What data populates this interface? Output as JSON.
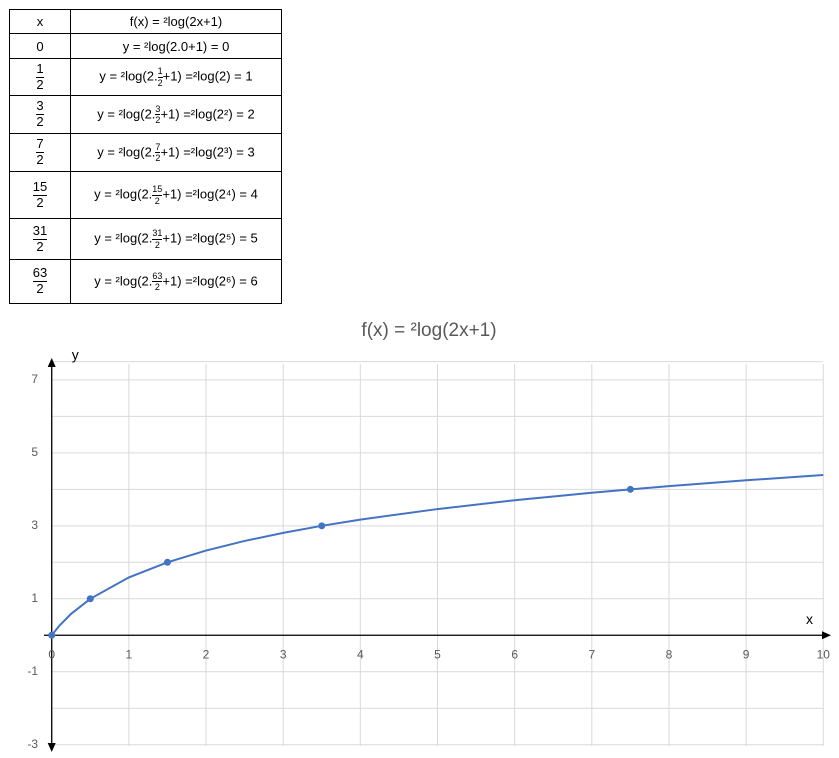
{
  "table": {
    "header": [
      "x",
      "f(x) = ²log(2x+1)"
    ],
    "rows": [
      {
        "x": "0",
        "f": "y = ²log(2.0+1) = 0"
      },
      {
        "x": {
          "num": "1",
          "den": "2"
        },
        "f": {
          "pre": "y = ²log(2.",
          "num": "1",
          "den": "2",
          "post": "+1) =²log(2) = 1"
        }
      },
      {
        "x": {
          "num": "3",
          "den": "2"
        },
        "f": {
          "pre": "y = ²log(2.",
          "num": "3",
          "den": "2",
          "post": "+1) =²log(2²) = 2"
        }
      },
      {
        "x": {
          "num": "7",
          "den": "2"
        },
        "f": {
          "pre": "y = ²log(2.",
          "num": "7",
          "den": "2",
          "post": "+1) =²log(2³) = 3"
        }
      },
      {
        "x": {
          "num": "15",
          "den": "2"
        },
        "f": {
          "pre": "y = ²log(2.",
          "num": "15",
          "den": "2",
          "post": "+1) =²log(2⁴) = 4"
        }
      },
      {
        "x": {
          "num": "31",
          "den": "2"
        },
        "f": {
          "pre": "y = ²log(2.",
          "num": "31",
          "den": "2",
          "post": "+1) =²log(2⁵) = 5"
        }
      },
      {
        "x": {
          "num": "63",
          "den": "2"
        },
        "f": {
          "pre": "y = ²log(2.",
          "num": "63",
          "den": "2",
          "post": "+1) =²log(2⁶) = 6"
        }
      }
    ]
  },
  "chart_data": {
    "type": "scatter",
    "title": "f(x) = ²log(2x+1)",
    "x_label": "x",
    "y_label": "y",
    "xlim": [
      -0.1,
      10.1
    ],
    "ylim": [
      -3.2,
      7.6
    ],
    "xticks": [
      0,
      1,
      2,
      3,
      4,
      5,
      6,
      7,
      8,
      9,
      10
    ],
    "yticks": [
      -3,
      -1,
      1,
      3,
      5,
      7
    ],
    "ygrid": [
      -3,
      -2,
      -1,
      0,
      1,
      2,
      3,
      4,
      5,
      6,
      7,
      7.5
    ],
    "grid": true,
    "series": [
      {
        "color": "#4472c4",
        "style": "line",
        "x": [
          0,
          0.1,
          0.25,
          0.5,
          1,
          1.5,
          2,
          2.5,
          3,
          3.5,
          4,
          5,
          6,
          7,
          7.5,
          8,
          9,
          10
        ],
        "values": [
          0,
          0.263,
          0.585,
          1,
          1.585,
          2,
          2.322,
          2.585,
          2.807,
          3,
          3.17,
          3.459,
          3.7,
          3.907,
          4,
          4.087,
          4.248,
          4.392
        ]
      },
      {
        "color": "#4472c4",
        "style": "points",
        "x": [
          0,
          0.5,
          1.5,
          3.5,
          7.5
        ],
        "values": [
          0,
          1,
          2,
          3,
          4
        ]
      }
    ]
  }
}
